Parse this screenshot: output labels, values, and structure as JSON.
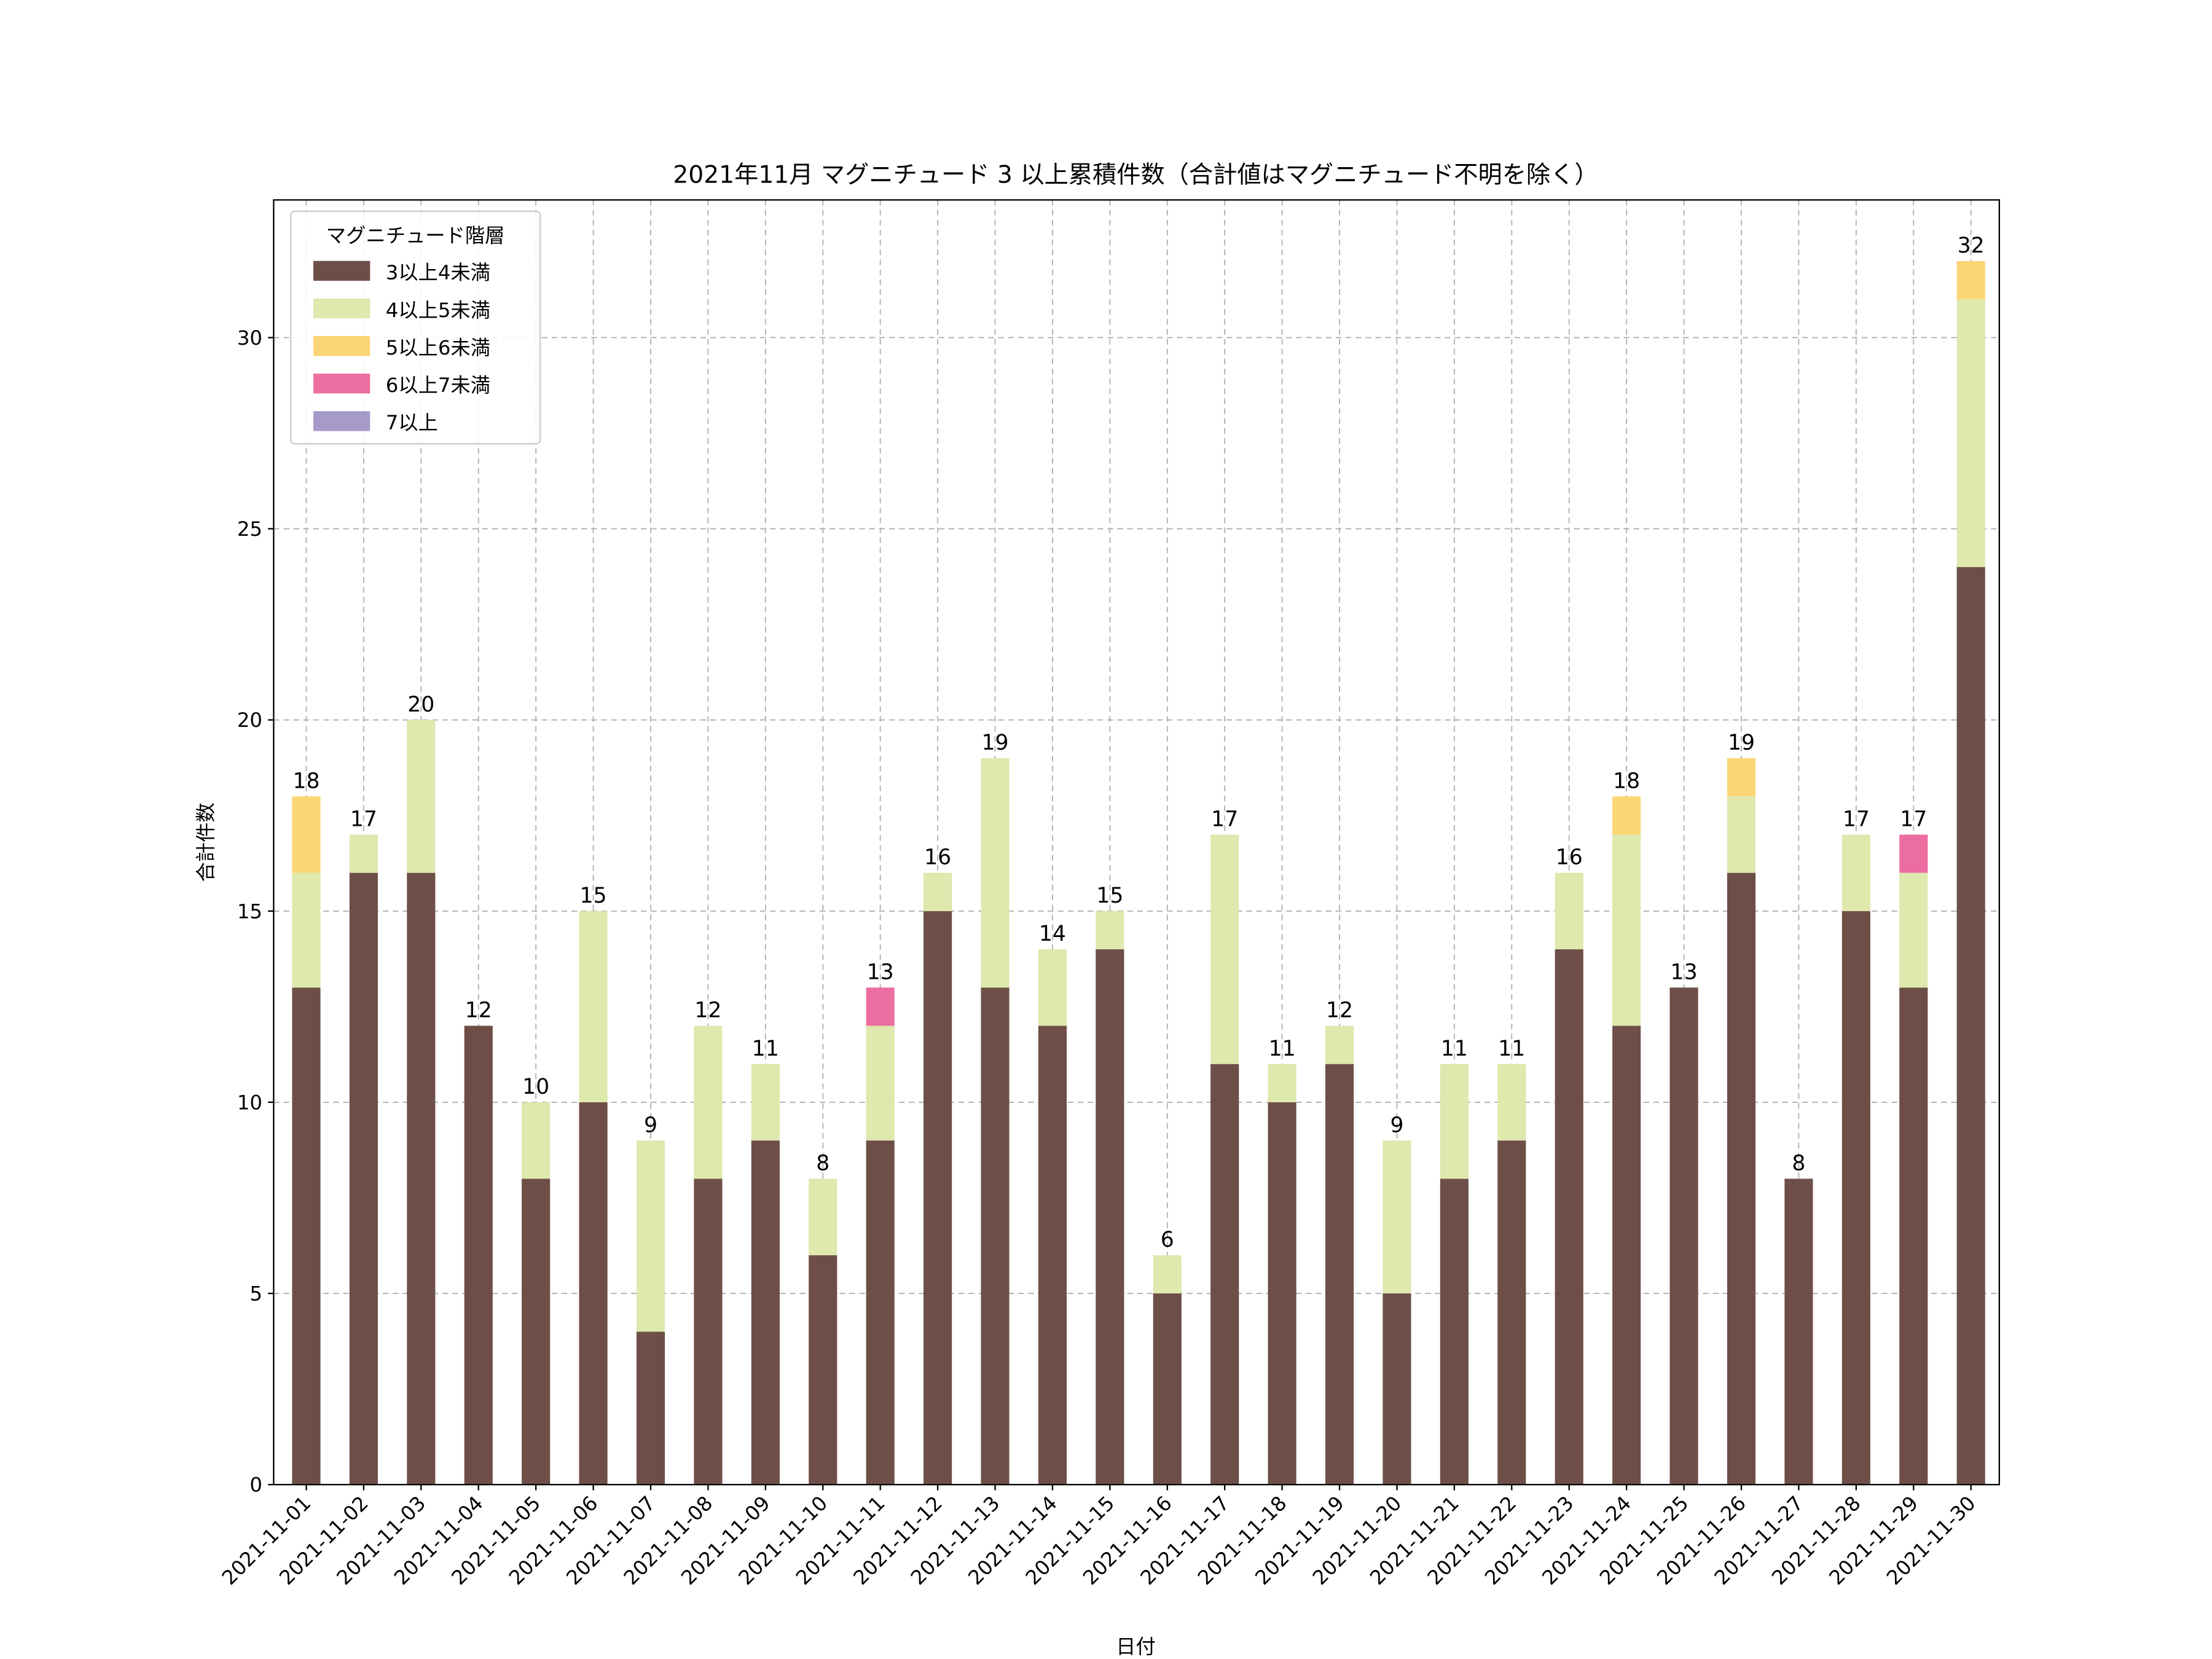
{
  "chart_data": {
    "type": "bar",
    "stacked": true,
    "title": "2021年11月 マグニチュード 3 以上累積件数（合計値はマグニチュード不明を除く）",
    "xlabel": "日付",
    "ylabel": "合計件数",
    "ylim": [
      0,
      33.6
    ],
    "yticks": [
      0,
      5,
      10,
      15,
      20,
      25,
      30
    ],
    "grid": true,
    "legend": {
      "title": "マグニチュード階層",
      "placement": "top-left"
    },
    "categories": [
      "2021-11-01",
      "2021-11-02",
      "2021-11-03",
      "2021-11-04",
      "2021-11-05",
      "2021-11-06",
      "2021-11-07",
      "2021-11-08",
      "2021-11-09",
      "2021-11-10",
      "2021-11-11",
      "2021-11-12",
      "2021-11-13",
      "2021-11-14",
      "2021-11-15",
      "2021-11-16",
      "2021-11-17",
      "2021-11-18",
      "2021-11-19",
      "2021-11-20",
      "2021-11-21",
      "2021-11-22",
      "2021-11-23",
      "2021-11-24",
      "2021-11-25",
      "2021-11-26",
      "2021-11-27",
      "2021-11-28",
      "2021-11-29",
      "2021-11-30"
    ],
    "series": [
      {
        "name": "3以上4未満",
        "color": "#6d4f48",
        "values": [
          13,
          16,
          16,
          12,
          8,
          10,
          4,
          8,
          9,
          6,
          9,
          15,
          13,
          12,
          14,
          5,
          11,
          10,
          11,
          5,
          8,
          9,
          14,
          12,
          13,
          16,
          8,
          15,
          13,
          24
        ]
      },
      {
        "name": "4以上5未満",
        "color": "#dfe8ad",
        "values": [
          3,
          1,
          4,
          0,
          2,
          5,
          5,
          4,
          2,
          2,
          3,
          1,
          6,
          2,
          1,
          1,
          6,
          1,
          1,
          4,
          3,
          2,
          2,
          5,
          0,
          2,
          0,
          2,
          3,
          7
        ]
      },
      {
        "name": "5以上6未満",
        "color": "#fcd575",
        "values": [
          2,
          0,
          0,
          0,
          0,
          0,
          0,
          0,
          0,
          0,
          0,
          0,
          0,
          0,
          0,
          0,
          0,
          0,
          0,
          0,
          0,
          0,
          0,
          1,
          0,
          1,
          0,
          0,
          0,
          1
        ]
      },
      {
        "name": "6以上7未満",
        "color": "#ec6ea0",
        "values": [
          0,
          0,
          0,
          0,
          0,
          0,
          0,
          0,
          0,
          0,
          1,
          0,
          0,
          0,
          0,
          0,
          0,
          0,
          0,
          0,
          0,
          0,
          0,
          0,
          0,
          0,
          0,
          0,
          1,
          0
        ]
      },
      {
        "name": "7以上",
        "color": "#a69acb",
        "values": [
          0,
          0,
          0,
          0,
          0,
          0,
          0,
          0,
          0,
          0,
          0,
          0,
          0,
          0,
          0,
          0,
          0,
          0,
          0,
          0,
          0,
          0,
          0,
          0,
          0,
          0,
          0,
          0,
          0,
          0
        ]
      }
    ],
    "totals": [
      18,
      17,
      20,
      12,
      10,
      15,
      9,
      12,
      11,
      8,
      13,
      16,
      19,
      14,
      15,
      6,
      17,
      11,
      12,
      9,
      11,
      11,
      16,
      18,
      13,
      19,
      8,
      17,
      17,
      32
    ]
  }
}
